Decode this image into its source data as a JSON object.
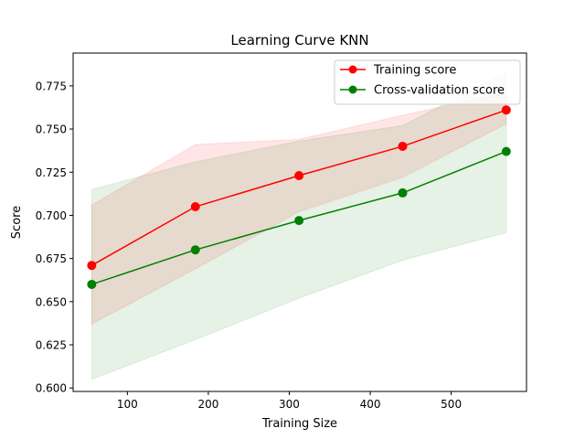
{
  "chart_data": {
    "type": "line",
    "title": "Learning Curve KNN",
    "xlabel": "Training Size",
    "ylabel": "Score",
    "xlim": [
      33,
      593
    ],
    "ylim": [
      0.598,
      0.794
    ],
    "xticks": [
      100,
      200,
      300,
      400,
      500
    ],
    "yticks": [
      0.6,
      0.625,
      0.65,
      0.675,
      0.7,
      0.725,
      0.75,
      0.775
    ],
    "ytick_labels": [
      "0.600",
      "0.625",
      "0.650",
      "0.675",
      "0.700",
      "0.725",
      "0.750",
      "0.775"
    ],
    "grid": false,
    "legend": {
      "position": "top-right"
    },
    "x": [
      56,
      184,
      312,
      440,
      568
    ],
    "series": [
      {
        "name": "Training score",
        "color": "#ff0000",
        "fill_color": "#ff0000",
        "values": [
          0.671,
          0.705,
          0.723,
          0.74,
          0.761
        ],
        "band_upper": [
          0.706,
          0.741,
          0.744,
          0.758,
          0.771
        ],
        "band_lower": [
          0.637,
          0.669,
          0.702,
          0.722,
          0.753
        ]
      },
      {
        "name": "Cross-validation score",
        "color": "#008000",
        "fill_color": "#008000",
        "values": [
          0.66,
          0.68,
          0.697,
          0.713,
          0.737
        ],
        "band_upper": [
          0.715,
          0.731,
          0.743,
          0.752,
          0.783
        ],
        "band_lower": [
          0.605,
          0.628,
          0.652,
          0.674,
          0.69
        ]
      }
    ]
  }
}
